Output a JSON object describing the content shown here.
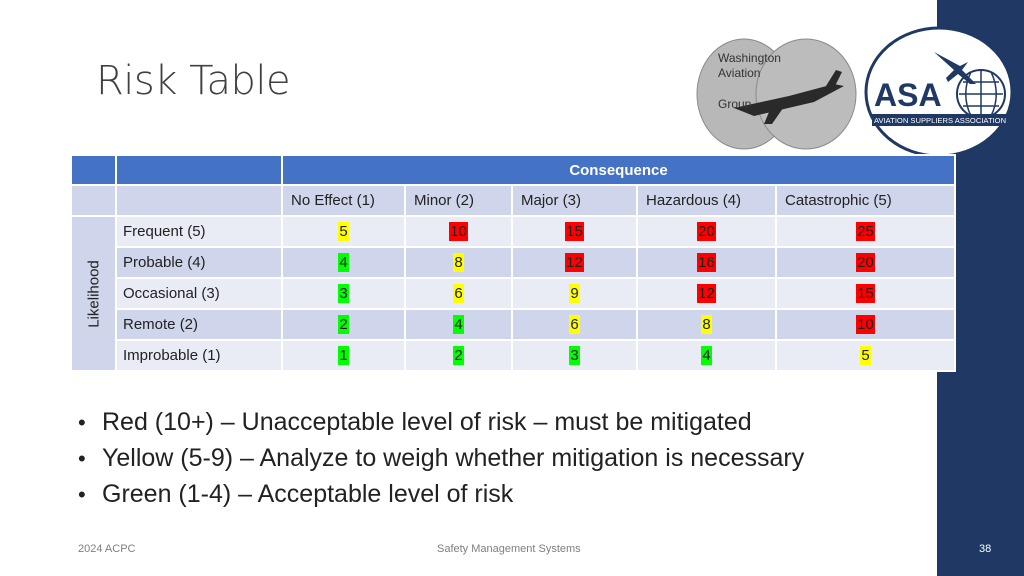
{
  "slide": {
    "title": "Risk Table",
    "footer_left": "2024 ACPC",
    "footer_center": "Safety Management Systems",
    "page_number": "38"
  },
  "logos": {
    "wag": {
      "line1": "Washington",
      "line2": "Aviation",
      "line3": "Group"
    },
    "asa": {
      "big": "ASA",
      "sub": "AVIATION SUPPLIERS ASSOCIATION"
    }
  },
  "colors": {
    "red": "#ff0000",
    "yellow": "#ffff00",
    "green": "#00ff00",
    "header_blue": "#4472c4",
    "sidebar_navy": "#1f3864"
  },
  "table": {
    "consequence_label": "Consequence",
    "likelihood_label": "Likelihood",
    "columns": [
      "No Effect (1)",
      "Minor (2)",
      "Major (3)",
      "Hazardous (4)",
      "Catastrophic (5)"
    ],
    "rows": [
      {
        "label": "Frequent (5)",
        "values": [
          "5",
          "10",
          "15",
          "20",
          "25"
        ],
        "levels": [
          "yellow",
          "red",
          "red",
          "red",
          "red"
        ]
      },
      {
        "label": "Probable (4)",
        "values": [
          "4",
          "8",
          "12",
          "16",
          "20"
        ],
        "levels": [
          "green",
          "yellow",
          "red",
          "red",
          "red"
        ]
      },
      {
        "label": "Occasional (3)",
        "values": [
          "3",
          "6",
          "9",
          "12",
          "15"
        ],
        "levels": [
          "green",
          "yellow",
          "yellow",
          "red",
          "red"
        ]
      },
      {
        "label": "Remote (2)",
        "values": [
          "2",
          "4",
          "6",
          "8",
          "10"
        ],
        "levels": [
          "green",
          "green",
          "yellow",
          "yellow",
          "red"
        ]
      },
      {
        "label": "Improbable (1)",
        "values": [
          "1",
          "2",
          "3",
          "4",
          "5"
        ],
        "levels": [
          "green",
          "green",
          "green",
          "green",
          "yellow"
        ]
      }
    ]
  },
  "bullets": [
    "Red (10+) – Unacceptable level of risk – must be mitigated",
    "Yellow (5-9) – Analyze to weigh whether mitigation is necessary",
    "Green (1-4) – Acceptable level of risk"
  ]
}
